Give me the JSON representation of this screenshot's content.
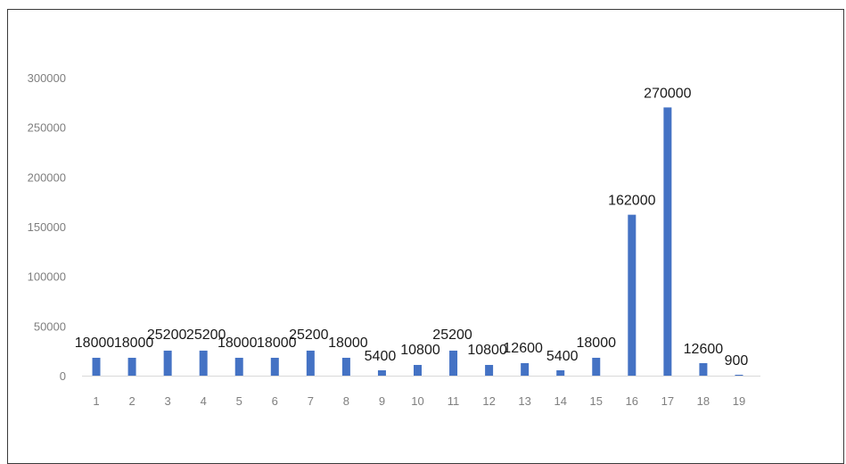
{
  "chart_data": {
    "type": "bar",
    "title": "",
    "xlabel": "",
    "ylabel": "",
    "categories": [
      "1",
      "2",
      "3",
      "4",
      "5",
      "6",
      "7",
      "8",
      "9",
      "10",
      "11",
      "12",
      "13",
      "14",
      "15",
      "16",
      "17",
      "18",
      "19"
    ],
    "values": [
      18000,
      18000,
      25200,
      25200,
      18000,
      18000,
      25200,
      18000,
      5400,
      10800,
      25200,
      10800,
      12600,
      5400,
      18000,
      162000,
      270000,
      12600,
      900
    ],
    "data_labels": [
      "18000",
      "18000",
      "25200",
      "25200",
      "18000",
      "18000",
      "25200",
      "18000",
      "5400",
      "10800",
      "25200",
      "10800",
      "12600",
      "5400",
      "18000",
      "162000",
      "270000",
      "12600",
      "900"
    ],
    "yticks": [
      "0",
      "50000",
      "100000",
      "150000",
      "200000",
      "250000",
      "300000"
    ],
    "ylim": [
      0,
      300000
    ],
    "grid": false,
    "legend": "none",
    "colors": {
      "bar": "#4472c4",
      "axis": "#d9d9d9",
      "tick_text": "#7f7f7f",
      "label_text": "#1a1a1a",
      "border": "#3a3a3a"
    }
  }
}
